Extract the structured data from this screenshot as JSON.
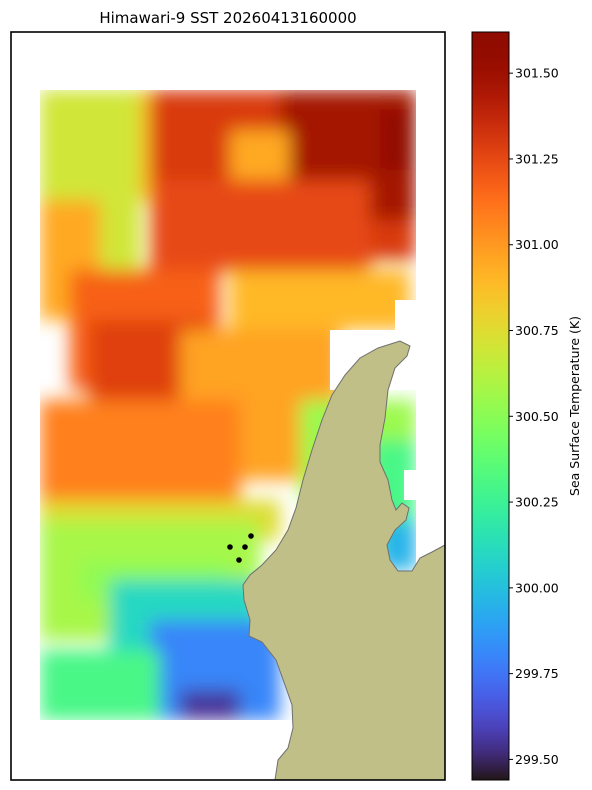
{
  "chart_data": {
    "type": "heatmap",
    "title": "Himawari-9 SST 20260413160000",
    "colorbar": {
      "label": "Sea Surface Temperature (K)",
      "colormap": "turbo",
      "range": [
        299.44,
        301.62
      ],
      "ticks": [
        "299.50",
        "299.75",
        "300.00",
        "300.25",
        "300.50",
        "300.75",
        "301.00",
        "301.25",
        "301.50"
      ]
    },
    "grid": false,
    "land_color": "#bfbf87",
    "land_edge_color": "#6f6f6f",
    "markers": {
      "count": 4,
      "color": "#000000"
    }
  }
}
